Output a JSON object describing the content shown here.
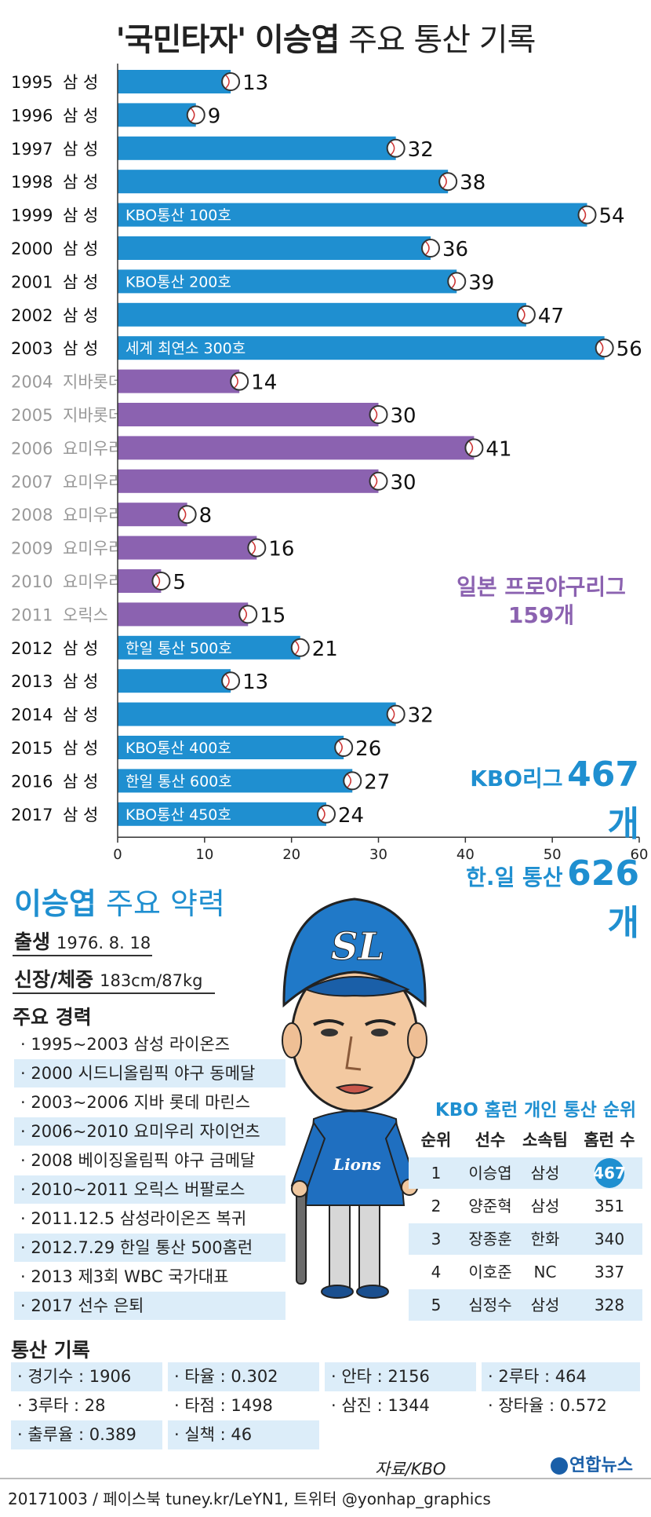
{
  "title": {
    "quoted": "'국민타자'",
    "name": "이승엽",
    "rest": "주요 통산 기록"
  },
  "colors": {
    "kbo": "#1f8fd0",
    "japan": "#8b62b0",
    "shade": "#dcedf9"
  },
  "chart_data": {
    "type": "bar",
    "orientation": "horizontal",
    "title": "'국민타자' 이승엽 주요 통산 기록",
    "xlim": [
      0,
      60
    ],
    "xticks": [
      0,
      10,
      20,
      30,
      40,
      50,
      60
    ],
    "rows": [
      {
        "year": "1995",
        "team": "삼 성",
        "league": "kbo",
        "value": 13,
        "note": ""
      },
      {
        "year": "1996",
        "team": "삼 성",
        "league": "kbo",
        "value": 9,
        "note": ""
      },
      {
        "year": "1997",
        "team": "삼 성",
        "league": "kbo",
        "value": 32,
        "note": ""
      },
      {
        "year": "1998",
        "team": "삼 성",
        "league": "kbo",
        "value": 38,
        "note": ""
      },
      {
        "year": "1999",
        "team": "삼 성",
        "league": "kbo",
        "value": 54,
        "note": "KBO통산 100호"
      },
      {
        "year": "2000",
        "team": "삼 성",
        "league": "kbo",
        "value": 36,
        "note": ""
      },
      {
        "year": "2001",
        "team": "삼 성",
        "league": "kbo",
        "value": 39,
        "note": "KBO통산 200호"
      },
      {
        "year": "2002",
        "team": "삼 성",
        "league": "kbo",
        "value": 47,
        "note": ""
      },
      {
        "year": "2003",
        "team": "삼 성",
        "league": "kbo",
        "value": 56,
        "note": "세계 최연소 300호"
      },
      {
        "year": "2004",
        "team": "지바롯데",
        "league": "japan",
        "value": 14,
        "note": ""
      },
      {
        "year": "2005",
        "team": "지바롯데",
        "league": "japan",
        "value": 30,
        "note": ""
      },
      {
        "year": "2006",
        "team": "요미우리",
        "league": "japan",
        "value": 41,
        "note": ""
      },
      {
        "year": "2007",
        "team": "요미우리",
        "league": "japan",
        "value": 30,
        "note": ""
      },
      {
        "year": "2008",
        "team": "요미우리",
        "league": "japan",
        "value": 8,
        "note": ""
      },
      {
        "year": "2009",
        "team": "요미우리",
        "league": "japan",
        "value": 16,
        "note": ""
      },
      {
        "year": "2010",
        "team": "요미우리",
        "league": "japan",
        "value": 5,
        "note": ""
      },
      {
        "year": "2011",
        "team": "오릭스",
        "league": "japan",
        "value": 15,
        "note": ""
      },
      {
        "year": "2012",
        "team": "삼 성",
        "league": "kbo",
        "value": 21,
        "note": "한일 통산 500호"
      },
      {
        "year": "2013",
        "team": "삼 성",
        "league": "kbo",
        "value": 13,
        "note": ""
      },
      {
        "year": "2014",
        "team": "삼 성",
        "league": "kbo",
        "value": 32,
        "note": ""
      },
      {
        "year": "2015",
        "team": "삼 성",
        "league": "kbo",
        "value": 26,
        "note": "KBO통산 400호"
      },
      {
        "year": "2016",
        "team": "삼 성",
        "league": "kbo",
        "value": 27,
        "note": "한일 통산 600호"
      },
      {
        "year": "2017",
        "team": "삼 성",
        "league": "kbo",
        "value": 24,
        "note": "KBO통산 450호"
      }
    ]
  },
  "totals": {
    "japan_label": "일본 프로야구리그",
    "japan_value": "159개",
    "kbo_label": "KBO리그",
    "kbo_value": "467개",
    "combined_label": "한.일 통산",
    "combined_value": "626개"
  },
  "profile": {
    "title_name": "이승엽",
    "title_rest": "주요 약력",
    "birth_label": "출생",
    "birth_value": "1976. 8. 18",
    "body_label": "신장/체중",
    "body_value": "183cm/87kg",
    "career_label": "주요 경력",
    "career": [
      "· 1995~2003 삼성 라이온즈",
      "· 2000 시드니올림픽 야구 동메달",
      "· 2003~2006 지바 롯데 마린스",
      "· 2006~2010 요미우리 자이언츠",
      "· 2008 베이징올림픽 야구 금메달",
      "· 2010~2011 오릭스 버팔로스",
      "· 2011.12.5 삼성라이온즈 복귀",
      "· 2012.7.29 한일 통산 500홈런",
      "· 2013 제3회 WBC 국가대표",
      "· 2017 선수 은퇴"
    ]
  },
  "ranking": {
    "title": "KBO 홈런 개인 통산 순위",
    "headers": [
      "순위",
      "선수",
      "소속팀",
      "홈런 수"
    ],
    "rows": [
      {
        "rank": "1",
        "player": "이승엽",
        "team": "삼성",
        "hr": "467"
      },
      {
        "rank": "2",
        "player": "양준혁",
        "team": "삼성",
        "hr": "351"
      },
      {
        "rank": "3",
        "player": "장종훈",
        "team": "한화",
        "hr": "340"
      },
      {
        "rank": "4",
        "player": "이호준",
        "team": "NC",
        "hr": "337"
      },
      {
        "rank": "5",
        "player": "심정수",
        "team": "삼성",
        "hr": "328"
      }
    ]
  },
  "stats": {
    "title": "통산 기록",
    "items": [
      "· 경기수 : 1906",
      "· 타율 : 0.302",
      "· 안타 : 2156",
      "· 2루타 : 464",
      "· 3루타 : 28",
      "· 타점 : 1498",
      "· 삼진 : 1344",
      "· 장타율 : 0.572",
      "· 출루율 : 0.389",
      "· 실책 : 46"
    ]
  },
  "illustration": {
    "cap_logo": "SL",
    "jersey_text": "Lions"
  },
  "source": "자료/KBO",
  "logo": "연합뉴스",
  "footer": "20171003 / 페이스북 tuney.kr/LeYN1, 트위터 @yonhap_graphics"
}
